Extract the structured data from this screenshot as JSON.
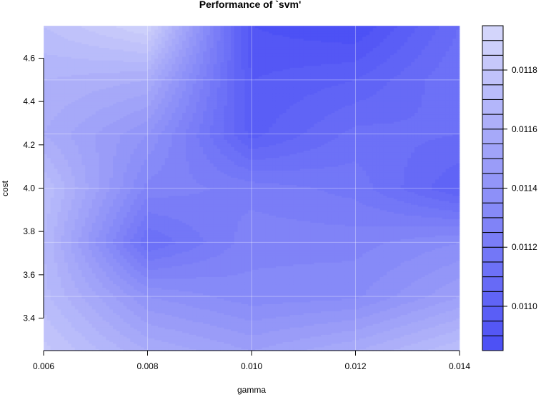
{
  "chart_data": {
    "type": "heatmap",
    "title": "Performance of `svm'",
    "xlabel": "gamma",
    "ylabel": "cost",
    "x": [
      0.006,
      0.008,
      0.01,
      0.012,
      0.014
    ],
    "y": [
      3.25,
      3.5,
      3.75,
      4.0,
      4.25,
      4.5,
      4.75
    ],
    "xlim": [
      0.006,
      0.014
    ],
    "ylim": [
      3.25,
      4.75
    ],
    "x_ticks": [
      "0.006",
      "0.008",
      "0.010",
      "0.012",
      "0.014"
    ],
    "y_ticks": [
      "3.4",
      "3.6",
      "3.8",
      "4.0",
      "4.2",
      "4.4",
      "4.6"
    ],
    "y_tick_values": [
      3.4,
      3.6,
      3.8,
      4.0,
      4.2,
      4.4,
      4.6
    ],
    "z": [
      [
        0.01182,
        0.0116,
        0.0115,
        0.0116,
        0.01175
      ],
      [
        0.01172,
        0.0114,
        0.01132,
        0.01134,
        0.0115
      ],
      [
        0.0117,
        0.0111,
        0.01128,
        0.01128,
        0.01135
      ],
      [
        0.01175,
        0.01128,
        0.01123,
        0.01118,
        0.011
      ],
      [
        0.0116,
        0.0114,
        0.01098,
        0.01112,
        0.0111
      ],
      [
        0.01165,
        0.0116,
        0.01095,
        0.011,
        0.01115
      ],
      [
        0.01175,
        0.0119,
        0.0109,
        0.01085,
        0.0111
      ]
    ],
    "zlim": [
      0.01085,
      0.01195
    ],
    "colorbar_ticks": [
      "0.0110",
      "0.0112",
      "0.0114",
      "0.0116",
      "0.0118"
    ],
    "colorbar_tick_values": [
      0.011,
      0.0112,
      0.0114,
      0.0116,
      0.0118
    ],
    "levels": 22,
    "color_low": "#4a4ef5",
    "color_high": "#d6d8fb",
    "grid": true
  }
}
